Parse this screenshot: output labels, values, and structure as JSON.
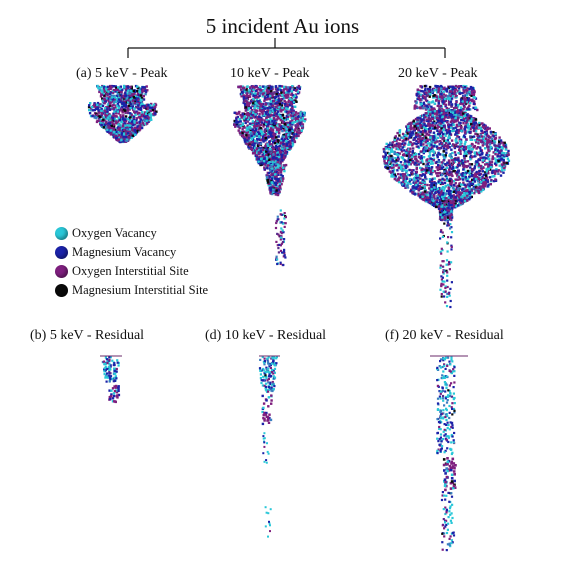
{
  "title": "5 incident Au ions",
  "panels": {
    "a": "(a) 5 keV - Peak",
    "c": "10 keV - Peak",
    "e": "20 keV - Peak",
    "b": "(b) 5 keV - Residual",
    "d": "(d) 10 keV - Residual",
    "f": "(f) 20 keV - Residual"
  },
  "legend": [
    {
      "label": "Oxygen Vacancy",
      "color": "#29c7d8"
    },
    {
      "label": "Magnesium Vacancy",
      "color": "#1b22a8"
    },
    {
      "label": "Oxygen Interstitial Site",
      "color": "#7e1f7e"
    },
    {
      "label": "Magnesium Interstitial Site",
      "color": "#0a0a0a"
    }
  ]
}
